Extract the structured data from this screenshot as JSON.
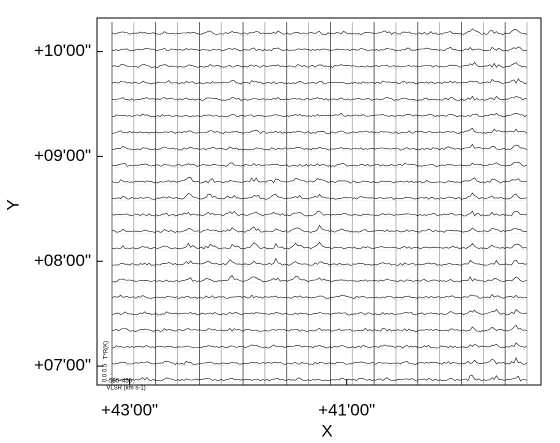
{
  "chart_data": {
    "type": "spectral-map",
    "x_label": "X",
    "y_label": "Y",
    "xlim": [
      43.3,
      39.21
    ],
    "ylim": [
      6.82,
      10.32
    ],
    "xticks": [
      {
        "value": 43,
        "label": "+43'00\""
      },
      {
        "value": 41,
        "label": "+41'00\""
      }
    ],
    "yticks": [
      {
        "value": 10,
        "label": "+10'00\""
      },
      {
        "value": 9,
        "label": "+09'00\""
      },
      {
        "value": 8,
        "label": "+08'00\""
      },
      {
        "value": 7,
        "label": "+07'00\""
      }
    ],
    "inset": {
      "intensity_label": "T*R(K)",
      "intensity_ticks": [
        "0.5",
        "0.0"
      ],
      "velocity_ticks": [
        "-550",
        "-450"
      ],
      "velocity_label": "VLSR (km s-1)"
    }
  }
}
